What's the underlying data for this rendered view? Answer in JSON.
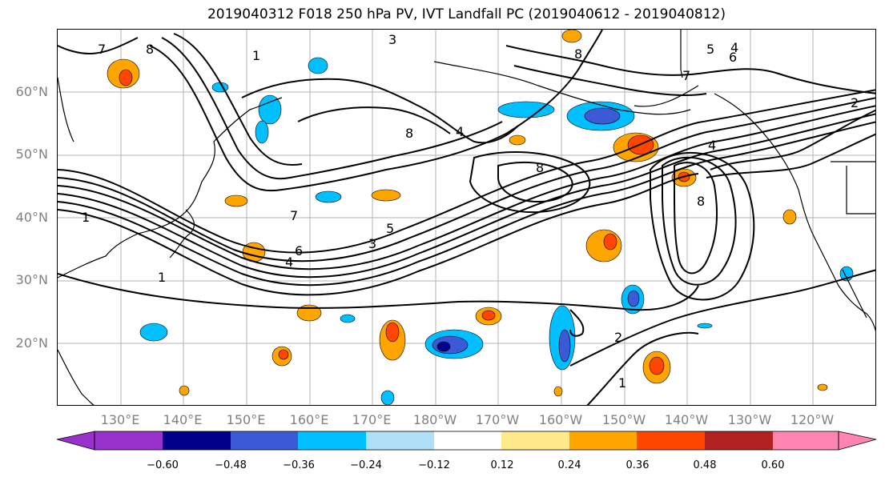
{
  "title": "2019040312 F018 250 hPa PV, IVT Landfall PC (2019040612 - 2019040812)",
  "latitude_labels": [
    "60°N",
    "50°N",
    "40°N",
    "30°N",
    "20°N"
  ],
  "longitude_labels": [
    "130°E",
    "140°E",
    "150°E",
    "160°E",
    "170°E",
    "180°W",
    "170°W",
    "160°W",
    "150°W",
    "140°W",
    "130°W",
    "120°W"
  ],
  "colorbar": {
    "tick_labels": [
      "−0.60",
      "−0.48",
      "−0.36",
      "−0.24",
      "−0.12",
      "0.12",
      "0.24",
      "0.36",
      "0.48",
      "0.60"
    ],
    "colors": [
      "#9932cc",
      "#00008b",
      "#3b5bd6",
      "#00bfff",
      "#b0e0f8",
      "#ffffff",
      "#ffe98a",
      "#ffa500",
      "#ff4500",
      "#b22222",
      "#ff85b0"
    ]
  },
  "contour_labels": [
    "1",
    "2",
    "3",
    "4",
    "5",
    "6",
    "7",
    "8"
  ],
  "colors": {
    "contour": "#000000",
    "coastline": "#000000",
    "grid": "#b3b3b3",
    "axis_labels": "#808080"
  }
}
